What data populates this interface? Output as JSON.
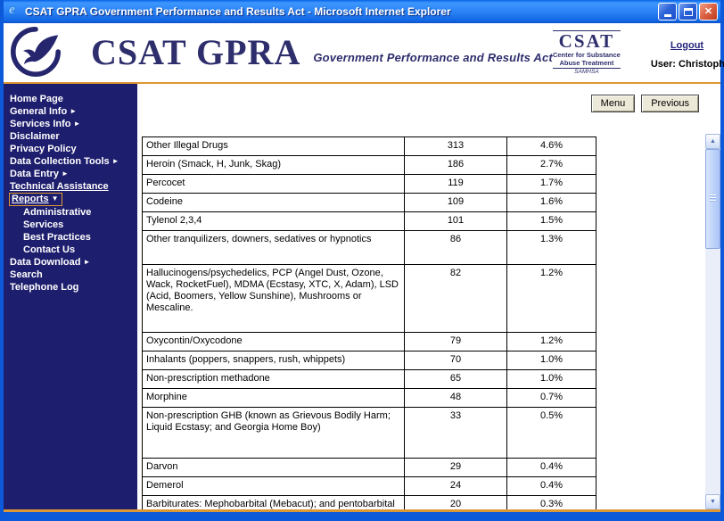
{
  "colors": {
    "titlebar_blue": "#0C59DA",
    "sidebar_navy": "#1E1E6E",
    "brand_navy": "#2E2E6D",
    "accent_orange": "#DD9733"
  },
  "window": {
    "title": "CSAT GPRA Government Performance and Results Act - Microsoft Internet Explorer"
  },
  "header": {
    "brand_title": "CSAT GPRA",
    "brand_subtitle": "Government Performance and Results Act",
    "csat": {
      "word": "CSAT",
      "line1": "Center for Substance",
      "line2": "Abuse Treatment",
      "samhsa": "SAMHSA"
    },
    "logout": "Logout",
    "user": "User: Christopher Shumway"
  },
  "sidebar": {
    "items": [
      {
        "label": "Home Page"
      },
      {
        "label": "General Info",
        "arrow": "►"
      },
      {
        "label": "Services Info",
        "arrow": "►"
      },
      {
        "label": "Disclaimer"
      },
      {
        "label": "Privacy Policy"
      },
      {
        "label": "Data Collection Tools",
        "arrow": "►"
      },
      {
        "label": "Data Entry",
        "arrow": "►"
      },
      {
        "label": "Technical Assistance",
        "underline": true
      },
      {
        "label": "Reports",
        "arrow": "▼",
        "active": true,
        "underline": true
      },
      {
        "label": "Administrative",
        "indent": true
      },
      {
        "label": "Services",
        "indent": true
      },
      {
        "label": "Best Practices",
        "indent": true
      },
      {
        "label": "Contact Us",
        "indent": true
      },
      {
        "label": "Data Download",
        "arrow": "►"
      },
      {
        "label": "Search"
      },
      {
        "label": "Telephone Log"
      }
    ]
  },
  "toolbar": {
    "menu": "Menu",
    "previous": "Previous"
  },
  "table": {
    "rows": [
      {
        "name": "Other Illegal Drugs",
        "count": "313",
        "pct": "4.6%"
      },
      {
        "name": "Heroin (Smack, H, Junk, Skag)",
        "count": "186",
        "pct": "2.7%"
      },
      {
        "name": "Percocet",
        "count": "119",
        "pct": "1.7%"
      },
      {
        "name": "Codeine",
        "count": "109",
        "pct": "1.6%"
      },
      {
        "name": "Tylenol 2,3,4",
        "count": "101",
        "pct": "1.5%"
      },
      {
        "name": "Other tranquilizers, downers, sedatives or hypnotics",
        "count": "86",
        "pct": "1.3%"
      },
      {
        "name": "Hallucinogens/psychedelics, PCP (Angel Dust, Ozone, Wack, RocketFuel), MDMA (Ecstasy, XTC, X, Adam), LSD (Acid, Boomers, Yellow Sunshine), Mushrooms or Mescaline.",
        "count": "82",
        "pct": "1.2%"
      },
      {
        "name": "Oxycontin/Oxycodone",
        "count": "79",
        "pct": "1.2%"
      },
      {
        "name": "Inhalants (poppers, snappers, rush, whippets)",
        "count": "70",
        "pct": "1.0%"
      },
      {
        "name": "Non-prescription methadone",
        "count": "65",
        "pct": "1.0%"
      },
      {
        "name": "Morphine",
        "count": "48",
        "pct": "0.7%"
      },
      {
        "name": "Non-prescription GHB (known as Grievous Bodily Harm; Liquid Ecstasy; and Georgia Home Boy)",
        "count": "33",
        "pct": "0.5%"
      },
      {
        "name": "Darvon",
        "count": "29",
        "pct": "0.4%"
      },
      {
        "name": "Demerol",
        "count": "24",
        "pct": "0.4%"
      },
      {
        "name": "Barbiturates: Mephobarbital (Mebacut); and pentobarbital sodium (Nembutal)",
        "count": "20",
        "pct": "0.3%"
      }
    ]
  }
}
